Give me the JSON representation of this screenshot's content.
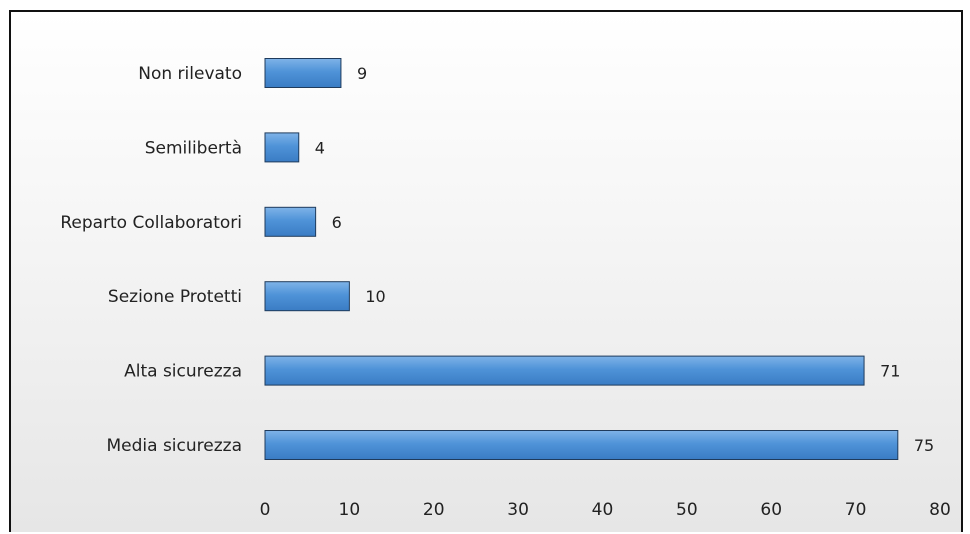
{
  "chart_data": {
    "type": "bar",
    "orientation": "horizontal",
    "categories": [
      "Non rilevato",
      "Semilibertà",
      "Reparto Collaboratori",
      "Sezione Protetti",
      "Alta sicurezza",
      "Media sicurezza"
    ],
    "values": [
      9,
      4,
      6,
      10,
      71,
      75
    ],
    "xlim": [
      0,
      80
    ],
    "xticks": [
      "0",
      "10",
      "20",
      "30",
      "40",
      "50",
      "60",
      "70",
      "80"
    ],
    "title": "",
    "xlabel": "",
    "ylabel": "",
    "grid": false,
    "legend": "none",
    "bar_color": "#4f93d8",
    "bar_edge_color": "#1f3b5c"
  }
}
